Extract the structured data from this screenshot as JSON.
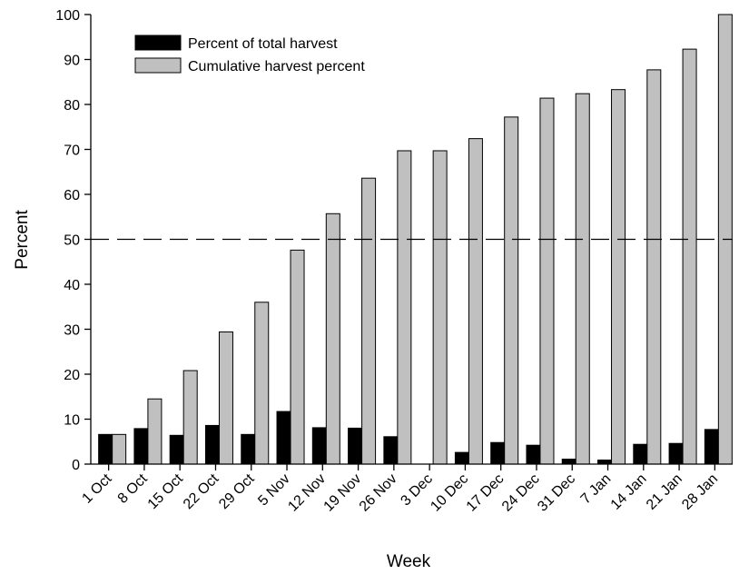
{
  "chart_data": {
    "type": "bar",
    "title": "",
    "xlabel": "Week",
    "ylabel": "Percent",
    "ylim": [
      0,
      100
    ],
    "yticks": [
      0,
      10,
      20,
      30,
      40,
      50,
      60,
      70,
      80,
      90,
      100
    ],
    "grid": false,
    "legend_position": "top-left",
    "categories": [
      "1 Oct",
      "8 Oct",
      "15 Oct",
      "22 Oct",
      "29 Oct",
      "5 Nov",
      "12 Nov",
      "19 Nov",
      "26 Nov",
      "3 Dec",
      "10 Dec",
      "17 Dec",
      "24 Dec",
      "31 Dec",
      "7 Jan",
      "14 Jan",
      "21 Jan",
      "28 Jan"
    ],
    "series": [
      {
        "name": "Percent of total harvest",
        "color": "#000000",
        "values": [
          6.6,
          7.9,
          6.4,
          8.6,
          6.6,
          11.7,
          8.1,
          8.0,
          6.1,
          0.0,
          2.6,
          4.8,
          4.2,
          1.1,
          0.9,
          4.4,
          4.6,
          7.7
        ]
      },
      {
        "name": "Cumulative harvest percent",
        "color": "#c0c0c0",
        "values": [
          6.6,
          14.5,
          20.8,
          29.4,
          36.0,
          47.6,
          55.7,
          63.6,
          69.7,
          69.7,
          72.4,
          77.2,
          81.4,
          82.4,
          83.3,
          87.7,
          92.3,
          100.0
        ]
      }
    ],
    "reference_line": {
      "y": 50,
      "style": "dashed"
    }
  }
}
